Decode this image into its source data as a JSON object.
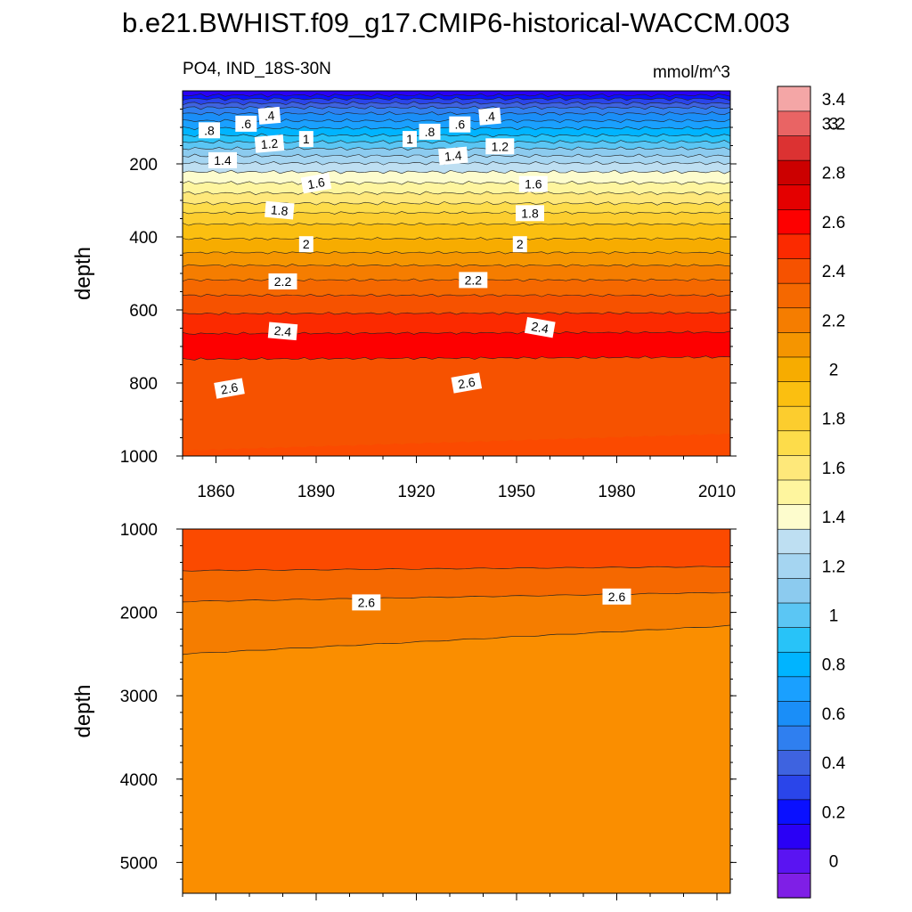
{
  "title": "b.e21.BWHIST.f09_g17.CMIP6-historical-WACCM.003",
  "subtitle_left": "PO4, IND_18S-30N",
  "subtitle_right": "mmol/m^3",
  "colors": {
    "levels": [
      "#7f1fe6",
      "#5a14f2",
      "#2a00f5",
      "#0a10ff",
      "#2a45ea",
      "#3e63e0",
      "#2f7ff0",
      "#1a8ef8",
      "#1aa0ff",
      "#00b4ff",
      "#28c3f8",
      "#5bc6f4",
      "#8ccbef",
      "#a5d5f1",
      "#bedff2",
      "#fdfccd",
      "#fef59e",
      "#fee87a",
      "#fddc4a",
      "#fccd2e",
      "#fbbf10",
      "#f7ac00",
      "#f59500",
      "#f57d00",
      "#f56800",
      "#f65200",
      "#fb2a00",
      "#fd0000",
      "#e40000",
      "#cc0000",
      "#dc3232",
      "#e96464",
      "#f4a6a6"
    ]
  },
  "chart_data": [
    {
      "type": "heatmap",
      "panel": "upper",
      "xlim": [
        1850,
        2014
      ],
      "ylim": [
        0,
        1000
      ],
      "y_inverted": true,
      "xticks": [
        1860,
        1890,
        1920,
        1950,
        1980,
        2010
      ],
      "yticks": [
        200,
        400,
        600,
        800,
        1000
      ],
      "ylabel": "depth",
      "xlabel": "",
      "contour_levels": [
        0.2,
        0.3,
        0.4,
        0.5,
        0.6,
        0.7,
        0.8,
        0.9,
        1.0,
        1.1,
        1.2,
        1.3,
        1.4,
        1.5,
        1.6,
        1.7,
        1.8,
        1.9,
        2.0,
        2.1,
        2.2,
        2.3,
        2.4,
        2.5,
        2.6,
        2.7
      ],
      "contour_depths": [
        12,
        22,
        34,
        46,
        62,
        82,
        102,
        122,
        140,
        158,
        178,
        198,
        222,
        252,
        280,
        308,
        334,
        365,
        405,
        443,
        478,
        518,
        560,
        610,
        665,
        735
      ],
      "contour_labels": [
        {
          "text": ".8",
          "x": 1858,
          "y": 108,
          "rot": 0
        },
        {
          "text": ".6",
          "x": 1869,
          "y": 90,
          "rot": 0
        },
        {
          "text": ".4",
          "x": 1876,
          "y": 68,
          "rot": -5
        },
        {
          "text": "1.2",
          "x": 1876,
          "y": 145,
          "rot": -5
        },
        {
          "text": "1",
          "x": 1887,
          "y": 132,
          "rot": 0
        },
        {
          "text": "1.4",
          "x": 1862,
          "y": 190,
          "rot": 0
        },
        {
          "text": "1.6",
          "x": 1890,
          "y": 253,
          "rot": -10
        },
        {
          "text": "1.8",
          "x": 1879,
          "y": 327,
          "rot": 5
        },
        {
          "text": "2",
          "x": 1887,
          "y": 420,
          "rot": 0
        },
        {
          "text": "2.2",
          "x": 1880,
          "y": 522,
          "rot": 0
        },
        {
          "text": "2.4",
          "x": 1880,
          "y": 658,
          "rot": 5
        },
        {
          "text": "2.6",
          "x": 1864,
          "y": 815,
          "rot": -10
        },
        {
          "text": "1",
          "x": 1918,
          "y": 132,
          "rot": 0
        },
        {
          "text": ".8",
          "x": 1924,
          "y": 112,
          "rot": 0
        },
        {
          "text": ".6",
          "x": 1933,
          "y": 92,
          "rot": 0
        },
        {
          "text": ".4",
          "x": 1942,
          "y": 70,
          "rot": -5
        },
        {
          "text": "1.2",
          "x": 1945,
          "y": 152,
          "rot": 0
        },
        {
          "text": "1.4",
          "x": 1931,
          "y": 178,
          "rot": -5
        },
        {
          "text": "1.6",
          "x": 1955,
          "y": 255,
          "rot": 0
        },
        {
          "text": "1.8",
          "x": 1954,
          "y": 335,
          "rot": 0
        },
        {
          "text": "2",
          "x": 1951,
          "y": 420,
          "rot": 0
        },
        {
          "text": "2.2",
          "x": 1937,
          "y": 518,
          "rot": 0
        },
        {
          "text": "2.4",
          "x": 1957,
          "y": 648,
          "rot": 10
        },
        {
          "text": "2.6",
          "x": 1935,
          "y": 800,
          "rot": -10
        }
      ]
    },
    {
      "type": "heatmap",
      "panel": "lower",
      "xlim": [
        1850,
        2014
      ],
      "ylim": [
        1000,
        5370
      ],
      "y_inverted": true,
      "xticks": [
        1860,
        1890,
        1920,
        1950,
        1980,
        2010
      ],
      "yticks": [
        1000,
        2000,
        3000,
        4000,
        5000
      ],
      "ylabel": "depth",
      "xlabel": "",
      "contour_lines": [
        {
          "level": 2.6,
          "depth_start": 1500,
          "depth_end": 1450
        },
        {
          "level": 2.6,
          "depth_start": 1870,
          "depth_end": 1760
        },
        {
          "level": 2.5,
          "depth_start": 2500,
          "depth_end": 2160
        }
      ],
      "contour_labels": [
        {
          "text": "2.6",
          "x": 1905,
          "y": 1880,
          "rot": 0
        },
        {
          "text": "2.6",
          "x": 1980,
          "y": 1810,
          "rot": 0
        }
      ]
    }
  ],
  "colorbar": {
    "labels": [
      "3.4",
      "3.2",
      "3",
      "2.8",
      "2.6",
      "2.4",
      "2.2",
      "2",
      "1.8",
      "1.6",
      "1.4",
      "1.2",
      "1",
      "0.8",
      "0.6",
      "0.4",
      "0.2",
      "0"
    ]
  }
}
